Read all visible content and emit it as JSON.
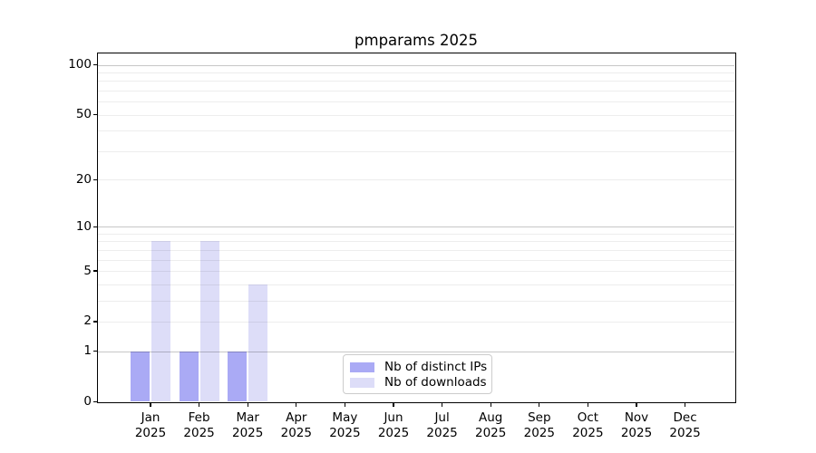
{
  "page": {
    "background": "#ffffff"
  },
  "chart_data": {
    "type": "bar",
    "title": "pmparams 2025",
    "categories": [
      "Jan",
      "Feb",
      "Mar",
      "Apr",
      "May",
      "Jun",
      "Jul",
      "Aug",
      "Sep",
      "Oct",
      "Nov",
      "Dec"
    ],
    "category_year": "2025",
    "series": [
      {
        "name": "Nb of distinct IPs",
        "color": "#aaaaf5",
        "values": [
          1,
          1,
          1,
          0,
          0,
          0,
          0,
          0,
          0,
          0,
          0,
          0
        ]
      },
      {
        "name": "Nb of downloads",
        "color": "#ddddf8",
        "values": [
          8,
          8,
          4,
          0,
          0,
          0,
          0,
          0,
          0,
          0,
          0,
          0
        ]
      }
    ],
    "yscale": "log1p",
    "ylim": [
      0,
      117
    ],
    "ytick_values": [
      0,
      1,
      2,
      5,
      10,
      20,
      50,
      100
    ],
    "ytick_labels": [
      "0",
      "1",
      "2",
      "5",
      "10",
      "20",
      "50",
      "100"
    ],
    "major_grid_values": [
      1,
      10,
      100
    ],
    "minor_grid_values": [
      2,
      3,
      4,
      5,
      6,
      7,
      8,
      9,
      20,
      30,
      40,
      50,
      60,
      70,
      80,
      90
    ],
    "grid": "horizontal",
    "legend_position": "lower center",
    "colors": {
      "axis": "#000000",
      "text": "#000000",
      "grid_major": "rgba(0,0,0,0.22)",
      "grid_minor": "rgba(0,0,0,0.07)",
      "legend_border": "#cccccc",
      "background": "#ffffff"
    }
  }
}
